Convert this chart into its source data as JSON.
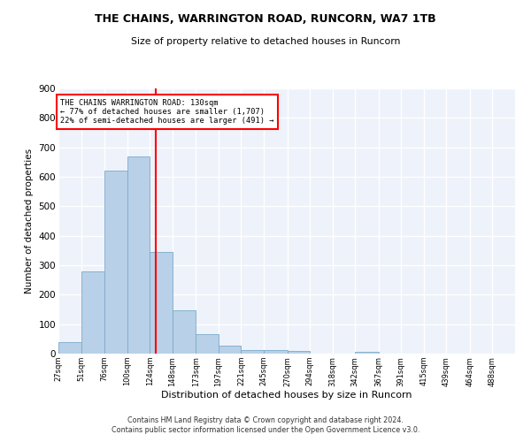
{
  "title": "THE CHAINS, WARRINGTON ROAD, RUNCORN, WA7 1TB",
  "subtitle": "Size of property relative to detached houses in Runcorn",
  "xlabel": "Distribution of detached houses by size in Runcorn",
  "ylabel": "Number of detached properties",
  "footer_line1": "Contains HM Land Registry data © Crown copyright and database right 2024.",
  "footer_line2": "Contains public sector information licensed under the Open Government Licence v3.0.",
  "bar_color": "#b8d0e8",
  "bar_edge_color": "#7aabcc",
  "background_color": "#eef2fa",
  "grid_color": "#ffffff",
  "vline_x": 130,
  "vline_color": "red",
  "annotation_title": "THE CHAINS WARRINGTON ROAD: 130sqm",
  "annotation_line1": "← 77% of detached houses are smaller (1,707)",
  "annotation_line2": "22% of semi-detached houses are larger (491) →",
  "annotation_box_color": "white",
  "annotation_border_color": "red",
  "bin_edges": [
    27,
    51,
    76,
    100,
    124,
    148,
    173,
    197,
    221,
    245,
    270,
    294,
    318,
    342,
    367,
    391,
    415,
    439,
    464,
    488,
    512
  ],
  "bin_counts": [
    40,
    278,
    622,
    668,
    345,
    146,
    65,
    28,
    13,
    11,
    8,
    0,
    0,
    7,
    0,
    0,
    0,
    0,
    0,
    0
  ],
  "ylim": [
    0,
    900
  ],
  "yticks": [
    0,
    100,
    200,
    300,
    400,
    500,
    600,
    700,
    800,
    900
  ]
}
